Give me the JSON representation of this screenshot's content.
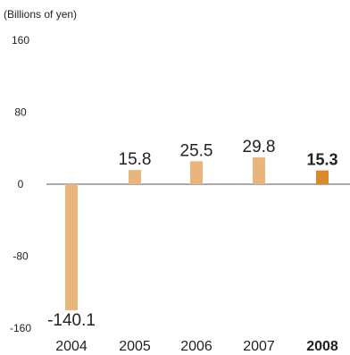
{
  "chart_data": {
    "type": "bar",
    "unit_label": "(Billions of yen)",
    "categories": [
      "2004",
      "2005",
      "2006",
      "2007",
      "2008"
    ],
    "values": [
      -140.1,
      15.8,
      25.5,
      29.8,
      15.3
    ],
    "value_labels": [
      "-140.1",
      "15.8",
      "25.5",
      "29.8",
      "15.3"
    ],
    "highlight_index": 4,
    "yticks": [
      "160",
      "80",
      "0",
      "-80",
      "-160"
    ],
    "ytick_values": [
      160,
      80,
      0,
      -80,
      -160
    ],
    "ylim": [
      -160,
      160
    ],
    "grid": false,
    "bar_color": "#e8b67d",
    "highlight_color": "#d9882a",
    "axis_color": "#555555",
    "text_color": "#222222"
  }
}
